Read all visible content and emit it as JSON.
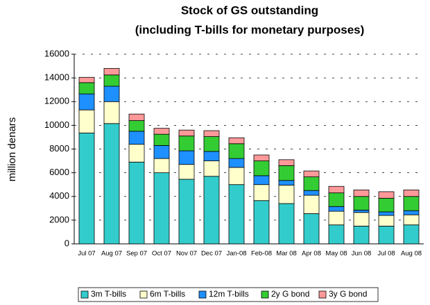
{
  "chart_data": {
    "type": "bar",
    "stacked": true,
    "title": "Stock of GS outstanding",
    "subtitle": "(including T-bills for monetary purposes)",
    "y_label": "million denars",
    "categories": [
      "Jul 07",
      "Aug 07",
      "Sep 07",
      "Oct 07",
      "Nov 07",
      "Dec 07",
      "Jan-08",
      "Feb-08",
      "Mar 08",
      "Apr 08",
      "May 08",
      "Jun 08",
      "Jul 08",
      "Aug 08"
    ],
    "series": [
      {
        "name": "3m T-bills",
        "color": "#33cccc",
        "values": [
          9350,
          10150,
          6900,
          6000,
          5450,
          5700,
          5000,
          3650,
          3400,
          2550,
          1600,
          1500,
          1500,
          1600
        ]
      },
      {
        "name": "6m T-bills",
        "color": "#ffffcc",
        "values": [
          1950,
          1850,
          1500,
          1200,
          1250,
          1300,
          1450,
          1350,
          1550,
          1550,
          1150,
          1150,
          900,
          850
        ]
      },
      {
        "name": "12m T-bills",
        "color": "#1e90ff",
        "values": [
          1350,
          1300,
          1100,
          1100,
          1150,
          800,
          750,
          750,
          400,
          400,
          400,
          200,
          300,
          350
        ]
      },
      {
        "name": "2y G bond",
        "color": "#33cc33",
        "values": [
          950,
          950,
          900,
          950,
          1250,
          1250,
          1250,
          1250,
          1250,
          1150,
          1150,
          1150,
          1150,
          1200
        ]
      },
      {
        "name": "3y G bond",
        "color": "#ff9999",
        "values": [
          450,
          550,
          550,
          500,
          500,
          500,
          500,
          500,
          500,
          500,
          550,
          550,
          550,
          550
        ]
      }
    ],
    "ylim": [
      0,
      16000
    ],
    "yticks": [
      0,
      2000,
      4000,
      6000,
      8000,
      10000,
      12000,
      14000,
      16000
    ],
    "grid": true,
    "legend": "bottom"
  }
}
